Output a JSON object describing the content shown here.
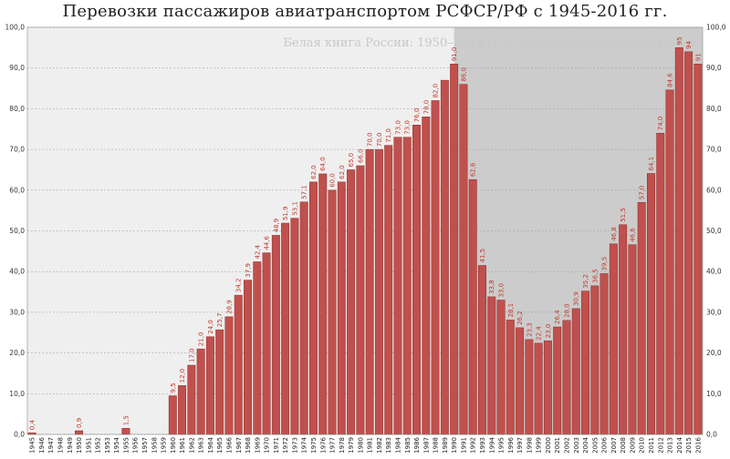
{
  "title": "Перевозки пассажиров авиатранспортом РСФСР/РФ с 1945-2016 гг.",
  "watermark": "Белая книга России: 1950–2013 гг © burckina-new.livejournal.com",
  "colors": {
    "bar": "#c0504d",
    "label": "#c0392b",
    "shade_light": "#efefef",
    "shade_dark": "#cccccc",
    "grid": "#999999"
  },
  "chart_data": {
    "type": "bar",
    "title": "Перевозки пассажиров авиатранспортом РСФСР/РФ с 1945-2016 гг.",
    "xlabel": "",
    "ylabel": "",
    "ylim": [
      0,
      100
    ],
    "yticks": [
      "0,0",
      "10,0",
      "20,0",
      "30,0",
      "40,0",
      "50,0",
      "60,0",
      "70,0",
      "80,0",
      "90,0",
      "100,0"
    ],
    "grid": true,
    "shaded_ranges": [
      {
        "from": "1945",
        "to": "1990",
        "shade": "light"
      },
      {
        "from": "1990",
        "to": "2016",
        "shade": "dark"
      }
    ],
    "categories": [
      "1945",
      "1946",
      "1947",
      "1948",
      "1949",
      "1950",
      "1951",
      "1952",
      "1953",
      "1954",
      "1955",
      "1956",
      "1957",
      "1958",
      "1959",
      "1960",
      "1961",
      "1962",
      "1963",
      "1964",
      "1965",
      "1966",
      "1967",
      "1968",
      "1969",
      "1970",
      "1971",
      "1972",
      "1973",
      "1974",
      "1975",
      "1976",
      "1977",
      "1978",
      "1979",
      "1980",
      "1981",
      "1982",
      "1983",
      "1984",
      "1985",
      "1986",
      "1987",
      "1988",
      "1989",
      "1990",
      "1991",
      "1992",
      "1993",
      "1994",
      "1995",
      "1996",
      "1997",
      "1998",
      "1999",
      "2000",
      "2001",
      "2002",
      "2003",
      "2004",
      "2005",
      "2006",
      "2007",
      "2008",
      "2009",
      "2010",
      "2011",
      "2012",
      "2013",
      "2014",
      "2015",
      "2016"
    ],
    "values": [
      0.4,
      null,
      null,
      null,
      null,
      0.9,
      null,
      null,
      null,
      null,
      1.5,
      null,
      null,
      null,
      null,
      9.5,
      12.0,
      17.0,
      21.0,
      24.0,
      25.7,
      28.9,
      34.2,
      37.9,
      42.4,
      44.6,
      48.9,
      51.9,
      53.1,
      57.1,
      62.0,
      64.0,
      60.0,
      62.0,
      65.0,
      66.0,
      70.0,
      70.0,
      71.0,
      73.0,
      73.0,
      76.0,
      78.0,
      82.0,
      87.0,
      91.0,
      86.0,
      62.6,
      41.5,
      33.8,
      33.0,
      28.1,
      26.2,
      23.3,
      22.4,
      23.0,
      26.4,
      28.0,
      30.9,
      35.2,
      36.5,
      39.5,
      46.8,
      51.5,
      46.6,
      57.0,
      64.1,
      74.0,
      84.6,
      95,
      94,
      91
    ],
    "labels": [
      "0,4",
      "",
      "",
      "",
      "",
      "0,9",
      "",
      "",
      "",
      "",
      "1,5",
      "",
      "",
      "",
      "",
      "9,5",
      "12,0",
      "17,0",
      "21,0",
      "24,0",
      "25,7",
      "28,9",
      "34,2",
      "37,9",
      "42,4",
      "44,6",
      "48,9",
      "51,9",
      "53,1",
      "57,1",
      "62,0",
      "64,0",
      "60,0",
      "62,0",
      "65,0",
      "66,0",
      "70,0",
      "70,0",
      "71,0",
      "73,0",
      "73,0",
      "76,0",
      "78,0",
      "82,0",
      "",
      "91,0",
      "86,0",
      "62,6",
      "41,5",
      "33,8",
      "33,0",
      "28,1",
      "26,2",
      "23,3",
      "22,4",
      "23,0",
      "26,4",
      "28,0",
      "30,9",
      "35,2",
      "36,5",
      "39,5",
      "46,8",
      "51,5",
      "46,6",
      "57,0",
      "64,1",
      "74,0",
      "84,6",
      "95",
      "94",
      "91"
    ]
  }
}
